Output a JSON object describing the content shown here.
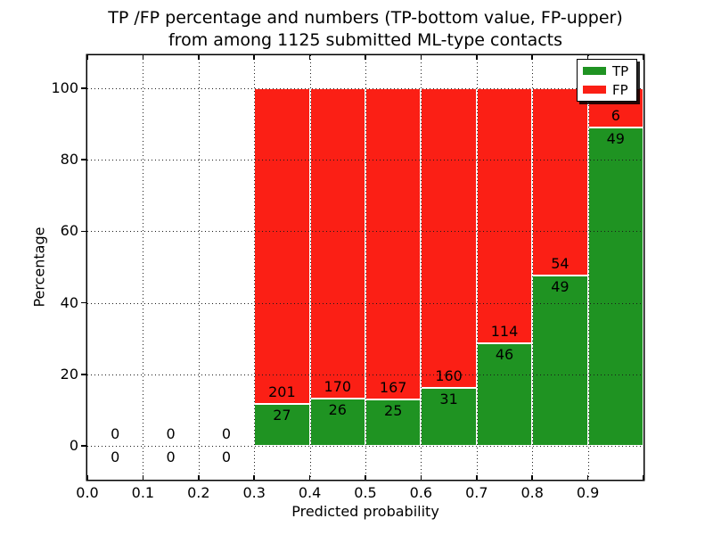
{
  "title": {
    "line1": "TP /FP percentage and numbers (TP-bottom value, FP-upper)",
    "line2": "from among 1125 submitted ML-type contacts"
  },
  "axes": {
    "xlabel": "Predicted probability",
    "ylabel": "Percentage"
  },
  "legend": {
    "items": [
      {
        "label": "TP",
        "color": "#1f9322"
      },
      {
        "label": "FP",
        "color": "#fb1f15"
      }
    ]
  },
  "chart_data": {
    "type": "bar",
    "stacked": true,
    "title": "TP /FP percentage and numbers (TP-bottom value, FP-upper) from among 1125 submitted ML-type contacts",
    "xlabel": "Predicted probability",
    "ylabel": "Percentage",
    "xlim": [
      0.0,
      1.0
    ],
    "ylim": [
      -10,
      110
    ],
    "grid": "black dotted gridlines on both axes, drawn over bars",
    "legend_position": "upper right",
    "total_contacts": 1125,
    "colors": {
      "tp": "#1f9322",
      "fp": "#fb1f15"
    },
    "series_note": "bar height = per-bin percentage split of TP vs FP; numeric labels show raw counts (TP bottom value, FP upper value)",
    "bins": [
      {
        "x_start": 0.0,
        "x_end": 0.1,
        "tp": 0,
        "fp": 0,
        "tp_pct": 0,
        "fp_pct": 0
      },
      {
        "x_start": 0.1,
        "x_end": 0.2,
        "tp": 0,
        "fp": 0,
        "tp_pct": 0,
        "fp_pct": 0
      },
      {
        "x_start": 0.2,
        "x_end": 0.3,
        "tp": 0,
        "fp": 0,
        "tp_pct": 0,
        "fp_pct": 0
      },
      {
        "x_start": 0.3,
        "x_end": 0.4,
        "tp": 27,
        "fp": 201,
        "tp_pct": 11.84,
        "fp_pct": 88.16
      },
      {
        "x_start": 0.4,
        "x_end": 0.5,
        "tp": 26,
        "fp": 170,
        "tp_pct": 13.27,
        "fp_pct": 86.73
      },
      {
        "x_start": 0.5,
        "x_end": 0.6,
        "tp": 25,
        "fp": 167,
        "tp_pct": 13.02,
        "fp_pct": 86.98
      },
      {
        "x_start": 0.6,
        "x_end": 0.7,
        "tp": 31,
        "fp": 160,
        "tp_pct": 16.23,
        "fp_pct": 83.77
      },
      {
        "x_start": 0.7,
        "x_end": 0.8,
        "tp": 46,
        "fp": 114,
        "tp_pct": 28.75,
        "fp_pct": 71.25
      },
      {
        "x_start": 0.8,
        "x_end": 0.9,
        "tp": 49,
        "fp": 54,
        "tp_pct": 47.57,
        "fp_pct": 52.43
      },
      {
        "x_start": 0.9,
        "x_end": 1.0,
        "tp": 49,
        "fp": 6,
        "tp_pct": 89.09,
        "fp_pct": 10.91
      }
    ],
    "xticks": [
      {
        "v": 0.0,
        "label": "0.0"
      },
      {
        "v": 0.1,
        "label": "0.1"
      },
      {
        "v": 0.2,
        "label": "0.2"
      },
      {
        "v": 0.3,
        "label": "0.3"
      },
      {
        "v": 0.4,
        "label": "0.4"
      },
      {
        "v": 0.5,
        "label": "0.5"
      },
      {
        "v": 0.6,
        "label": "0.6"
      },
      {
        "v": 0.7,
        "label": "0.7"
      },
      {
        "v": 0.8,
        "label": "0.8"
      },
      {
        "v": 0.9,
        "label": "0.9"
      },
      {
        "v": 1.0,
        "label": ""
      }
    ],
    "yticks": [
      {
        "v": 0,
        "label": "0"
      },
      {
        "v": 20,
        "label": "20"
      },
      {
        "v": 40,
        "label": "40"
      },
      {
        "v": 60,
        "label": "60"
      },
      {
        "v": 80,
        "label": "80"
      },
      {
        "v": 100,
        "label": "100"
      }
    ],
    "xgrid": [
      0.1,
      0.2,
      0.3,
      0.4,
      0.5,
      0.6,
      0.7,
      0.8,
      0.9
    ]
  }
}
